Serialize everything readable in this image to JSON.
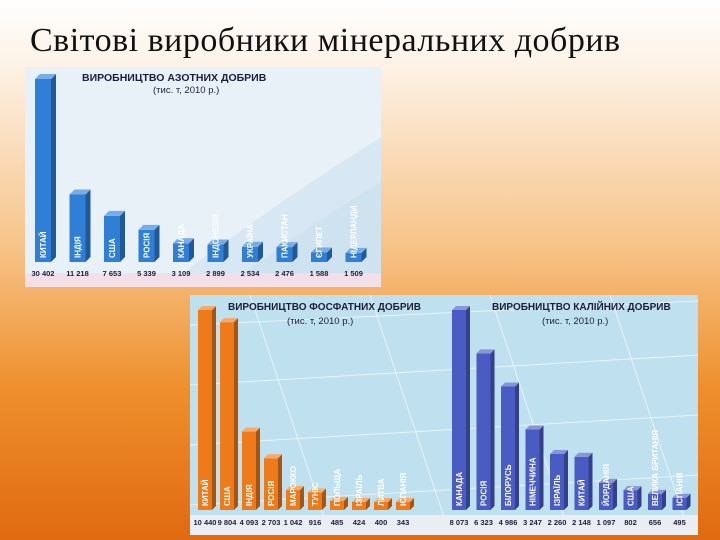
{
  "slide": {
    "title": "Світові виробники мінеральних добрив"
  },
  "colors": {
    "nitrogen": "#2f7fd6",
    "phosphate": "#ef7a1a",
    "potash": "#4a5cc4"
  },
  "chart_data": [
    {
      "type": "bar",
      "title": "ВИРОБНИЦТВО АЗОТНИХ ДОБРИВ",
      "subtitle": "(тис. т, 2010 р.)",
      "categories": [
        "КИТАЙ",
        "ІНДІЯ",
        "США",
        "РОСІЯ",
        "КАНАДА",
        "ІНДОНЕЗІЯ",
        "УКРАЇНА",
        "ПАКИСТАН",
        "ЄГИПЕТ",
        "НІДЕРЛАНДИ"
      ],
      "values": [
        30402,
        11218,
        7653,
        5339,
        3109,
        2899,
        2534,
        2476,
        1588,
        1509
      ],
      "value_labels": [
        "30 402",
        "11 218",
        "7 653",
        "5 339",
        "3 109",
        "2 899",
        "2 534",
        "2 476",
        "1 588",
        "1 509"
      ],
      "color": "#2f7fd6"
    },
    {
      "type": "bar",
      "title": "ВИРОБНИЦТВО ФОСФАТНИХ ДОБРИВ",
      "subtitle": "(тис. т, 2010 р.)",
      "categories": [
        "КИТАЙ",
        "США",
        "ІНДІЯ",
        "РОСІЯ",
        "МАРОККО",
        "ТУНІС",
        "ПОЛЬЩА",
        "ІЗРАЇЛЬ",
        "ЛИТВА",
        "ІСПАНІЯ"
      ],
      "values": [
        10440,
        9804,
        4093,
        2703,
        1042,
        916,
        485,
        424,
        400,
        343
      ],
      "value_labels": [
        "10 440",
        "9 804",
        "4 093",
        "2 703",
        "1 042",
        "916",
        "485",
        "424",
        "400",
        "343"
      ],
      "color": "#ef7a1a"
    },
    {
      "type": "bar",
      "title": "ВИРОБНИЦТВО КАЛІЙНИХ ДОБРИВ",
      "subtitle": "(тис. т, 2010 р.)",
      "categories": [
        "КАНАДА",
        "РОСІЯ",
        "БІЛОРУСЬ",
        "НІМЕЧЧИНА",
        "ІЗРАЇЛЬ",
        "КИТАЙ",
        "ЙОРДАНІЯ",
        "США",
        "ВЕЛИКА БРИТАНІЯ",
        "ІСПАНІЯ"
      ],
      "values": [
        8073,
        6323,
        4986,
        3247,
        2260,
        2148,
        1097,
        802,
        656,
        495
      ],
      "value_labels": [
        "8 073",
        "6 323",
        "4 986",
        "3 247",
        "2 260",
        "2 148",
        "1 097",
        "802",
        "656",
        "495"
      ],
      "color": "#4a5cc4"
    }
  ]
}
